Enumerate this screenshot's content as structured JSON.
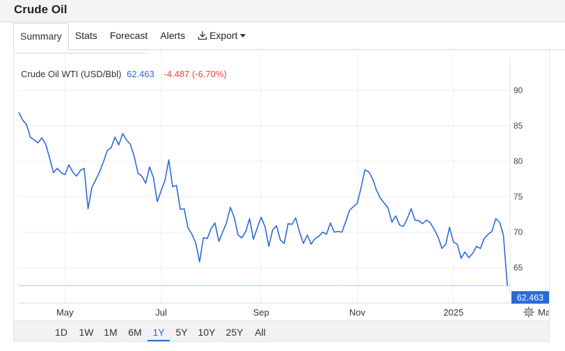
{
  "page": {
    "title": "Crude Oil"
  },
  "tabs": [
    {
      "label": "Summary",
      "active": true
    },
    {
      "label": "Stats"
    },
    {
      "label": "Forecast"
    },
    {
      "label": "Alerts"
    },
    {
      "label": "Export",
      "icon": "download-icon",
      "has_dropdown": true
    }
  ],
  "legend": {
    "name": "Crude Oil WTI (USD/Bbl)",
    "value": "62.463",
    "change": "-4.487 (-6.70%)",
    "value_color": "#2a6ad6",
    "change_color": "#e0433a"
  },
  "range_buttons": [
    {
      "label": "1D"
    },
    {
      "label": "1W"
    },
    {
      "label": "1M"
    },
    {
      "label": "6M"
    },
    {
      "label": "1Y",
      "active": true
    },
    {
      "label": "5Y"
    },
    {
      "label": "10Y"
    },
    {
      "label": "25Y"
    },
    {
      "label": "All"
    }
  ],
  "settings_icon": "gear-icon",
  "chart_data": {
    "type": "line",
    "ylim": [
      60,
      95
    ],
    "yticks": [
      65,
      70,
      75,
      80,
      85,
      90
    ],
    "x_labels": [
      {
        "label": "May",
        "x": 12
      },
      {
        "label": "Jul",
        "x": 37
      },
      {
        "label": "Sep",
        "x": 63
      },
      {
        "label": "Nov",
        "x": 88
      },
      {
        "label": "2025",
        "x": 113
      },
      {
        "label": "Mar",
        "x": 137
      }
    ],
    "last_value": 62.463,
    "last_label": "62.463",
    "line_color": "#2a6ad6",
    "grid": true,
    "series": [
      {
        "x": [
          0,
          1,
          2,
          3,
          4,
          5,
          6,
          7,
          8,
          9,
          10,
          11,
          12,
          13,
          14,
          15,
          16,
          17,
          18,
          19,
          20,
          21,
          22,
          23,
          24,
          25,
          26,
          27,
          28,
          29,
          30,
          31,
          32,
          33,
          34,
          35,
          36,
          37,
          38,
          39,
          40,
          41,
          42,
          43,
          44,
          45,
          46,
          47,
          48,
          49,
          50,
          51,
          52,
          53,
          54,
          55,
          56,
          57,
          58,
          59,
          60,
          61,
          62,
          63,
          64,
          65,
          66,
          67,
          68,
          69,
          70,
          71,
          72,
          73,
          74,
          75,
          76,
          77,
          78,
          79,
          80,
          81,
          82,
          83,
          84,
          85,
          86,
          87,
          88,
          89,
          90,
          91,
          92,
          93,
          94,
          95,
          96,
          97,
          98,
          99,
          100,
          101,
          102,
          103,
          104,
          105,
          106,
          107,
          108,
          109,
          110,
          111,
          112,
          113,
          114,
          115,
          116,
          117,
          118,
          119,
          120,
          121,
          122,
          123,
          124,
          125,
          126,
          127,
          128,
          129,
          130,
          131,
          132,
          133,
          134,
          135,
          136,
          137,
          138,
          139,
          140,
          141,
          142,
          143,
          144,
          145,
          146,
          147,
          148,
          149,
          150,
          151,
          152
        ],
        "y": [
          86.9,
          85.8,
          85.2,
          83.4,
          83.0,
          82.6,
          83.3,
          82.4,
          80.5,
          78.4,
          79.0,
          78.4,
          78.1,
          79.5,
          78.5,
          77.9,
          78.7,
          79.0,
          73.3,
          76.3,
          77.4,
          78.5,
          79.9,
          81.5,
          81.9,
          83.4,
          82.3,
          83.9,
          83.0,
          82.4,
          80.7,
          78.3,
          77.9,
          76.9,
          79.2,
          77.7,
          74.3,
          75.8,
          77.3,
          80.2,
          76.4,
          76.6,
          73.2,
          73.3,
          70.6,
          69.7,
          68.5,
          65.8,
          69.2,
          69.1,
          70.5,
          71.3,
          68.7,
          70.0,
          71.3,
          73.5,
          72.1,
          69.6,
          69.2,
          70.1,
          71.9,
          69.0,
          70.6,
          72.1,
          70.8,
          68.0,
          70.3,
          70.9,
          68.9,
          68.4,
          71.2,
          71.1,
          72.0,
          70.0,
          68.4,
          69.6,
          68.3,
          69.1,
          69.4,
          70.0,
          69.7,
          71.3,
          70.0,
          70.1,
          70.0,
          71.5,
          73.1,
          73.6,
          74.1,
          76.3,
          78.8,
          78.5,
          77.5,
          75.9,
          74.8,
          74.1,
          73.4,
          71.4,
          72.3,
          71.0,
          70.8,
          71.9,
          73.3,
          71.7,
          71.6,
          71.2,
          71.7,
          71.3,
          70.4,
          69.3,
          67.7,
          68.3,
          70.7,
          68.6,
          68.3,
          66.3,
          67.2,
          66.4,
          67.0,
          68.0,
          67.7,
          69.1,
          69.7,
          70.1,
          71.9,
          71.4,
          69.6,
          62.463,
          62.5,
          62.5,
          62.5,
          62.5,
          62.5,
          62.5,
          62.5,
          62.5,
          62.5,
          62.5,
          62.5,
          62.5,
          62.5,
          62.5,
          62.5,
          62.5,
          62.5,
          62.5,
          62.5,
          62.5,
          62.5,
          62.5,
          62.5,
          62.5,
          62.5
        ]
      }
    ]
  }
}
